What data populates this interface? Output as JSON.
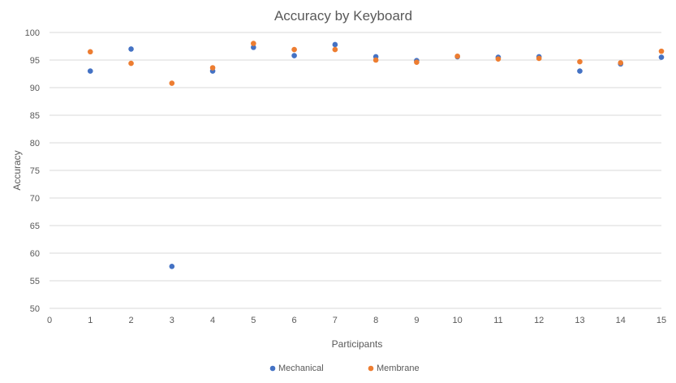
{
  "chart_data": {
    "type": "scatter",
    "title": "Accuracy by Keyboard",
    "xlabel": "Participants",
    "ylabel": "Accuracy",
    "xlim": [
      0,
      15
    ],
    "ylim": [
      50,
      100
    ],
    "x_ticks": [
      "0",
      "1",
      "2",
      "3",
      "4",
      "5",
      "6",
      "7",
      "8",
      "9",
      "10",
      "11",
      "12",
      "13",
      "14",
      "15"
    ],
    "y_ticks": [
      "50",
      "55",
      "60",
      "65",
      "70",
      "75",
      "80",
      "85",
      "90",
      "95",
      "100"
    ],
    "grid": "horizontal",
    "legend_position": "bottom",
    "x": [
      1,
      2,
      3,
      4,
      5,
      6,
      7,
      8,
      9,
      10,
      11,
      12,
      13,
      14,
      15
    ],
    "series": [
      {
        "name": "Mechanical",
        "color": "#4472C4",
        "values": [
          93.0,
          97.0,
          57.6,
          93.0,
          97.3,
          95.8,
          97.8,
          95.6,
          94.9,
          95.6,
          95.5,
          95.6,
          93.0,
          94.3,
          95.5
        ]
      },
      {
        "name": "Membrane",
        "color": "#ED7D31",
        "values": [
          96.5,
          94.4,
          90.8,
          93.6,
          98.0,
          96.9,
          96.9,
          95.0,
          94.6,
          95.7,
          95.2,
          95.3,
          94.7,
          94.5,
          96.6
        ]
      }
    ]
  }
}
